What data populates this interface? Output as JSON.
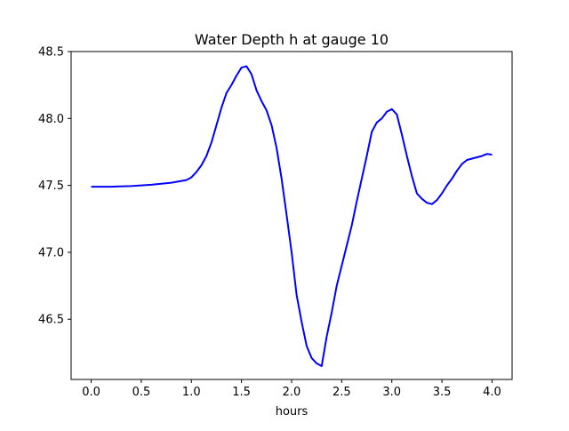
{
  "chart_data": {
    "type": "line",
    "title": "Water Depth h at gauge 10",
    "xlabel": "hours",
    "ylabel": "",
    "xlim": [
      -0.2,
      4.2
    ],
    "ylim": [
      46.05,
      48.5
    ],
    "xticks": [
      0.0,
      0.5,
      1.0,
      1.5,
      2.0,
      2.5,
      3.0,
      3.5,
      4.0
    ],
    "xtick_labels": [
      "0.0",
      "0.5",
      "1.0",
      "1.5",
      "2.0",
      "2.5",
      "3.0",
      "3.5",
      "4.0"
    ],
    "yticks": [
      46.5,
      47.0,
      47.5,
      48.0,
      48.5
    ],
    "ytick_labels": [
      "46.5",
      "47.0",
      "47.5",
      "48.0",
      "48.5"
    ],
    "grid": false,
    "series": [
      {
        "color": "#0000ff",
        "x": [
          0.0,
          0.2,
          0.4,
          0.6,
          0.8,
          0.95,
          1.0,
          1.05,
          1.1,
          1.15,
          1.2,
          1.25,
          1.3,
          1.35,
          1.4,
          1.45,
          1.5,
          1.55,
          1.6,
          1.65,
          1.7,
          1.75,
          1.8,
          1.85,
          1.9,
          1.95,
          2.0,
          2.05,
          2.1,
          2.15,
          2.2,
          2.25,
          2.3,
          2.35,
          2.4,
          2.45,
          2.5,
          2.55,
          2.6,
          2.65,
          2.7,
          2.75,
          2.8,
          2.85,
          2.9,
          2.95,
          3.0,
          3.05,
          3.1,
          3.15,
          3.2,
          3.25,
          3.3,
          3.35,
          3.4,
          3.45,
          3.5,
          3.55,
          3.6,
          3.65,
          3.7,
          3.75,
          3.8,
          3.85,
          3.9,
          3.95,
          4.0
        ],
        "y": [
          47.49,
          47.49,
          47.495,
          47.505,
          47.52,
          47.54,
          47.56,
          47.6,
          47.65,
          47.72,
          47.82,
          47.95,
          48.08,
          48.19,
          48.25,
          48.32,
          48.38,
          48.39,
          48.33,
          48.21,
          48.13,
          48.06,
          47.95,
          47.78,
          47.55,
          47.28,
          47.0,
          46.68,
          46.48,
          46.3,
          46.21,
          46.17,
          46.15,
          46.37,
          46.55,
          46.75,
          46.9,
          47.05,
          47.2,
          47.38,
          47.55,
          47.72,
          47.9,
          47.97,
          48.0,
          48.05,
          48.07,
          48.03,
          47.88,
          47.72,
          47.57,
          47.44,
          47.4,
          47.37,
          47.36,
          47.39,
          47.44,
          47.5,
          47.55,
          47.61,
          47.66,
          47.69,
          47.7,
          47.71,
          47.72,
          47.735,
          47.73
        ]
      }
    ]
  }
}
